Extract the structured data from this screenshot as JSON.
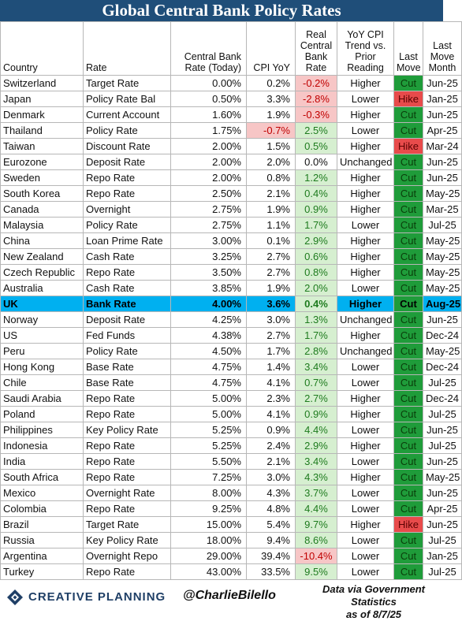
{
  "title": "Global Central Bank Policy Rates",
  "headers": {
    "country": "Country",
    "rate": "Rate",
    "cb_rate": "Central Bank Rate (Today)",
    "cpi": "CPI YoY",
    "real_rate": "Real Central Bank Rate",
    "trend": "YoY CPI Trend vs. Prior Reading",
    "last_move": "Last Move",
    "last_move_month": "Last Move Month"
  },
  "rows": [
    {
      "country": "Switzerland",
      "rate": "Target Rate",
      "cb": "0.00%",
      "cpi": "0.2%",
      "real": "-0.2%",
      "trend": "Higher",
      "move": "Cut",
      "month": "Jun-25"
    },
    {
      "country": "Japan",
      "rate": "Policy Rate Bal",
      "cb": "0.50%",
      "cpi": "3.3%",
      "real": "-2.8%",
      "trend": "Lower",
      "move": "Hike",
      "month": "Jan-25"
    },
    {
      "country": "Denmark",
      "rate": "Current Account",
      "cb": "1.60%",
      "cpi": "1.9%",
      "real": "-0.3%",
      "trend": "Higher",
      "move": "Cut",
      "month": "Jun-25"
    },
    {
      "country": "Thailand",
      "rate": "Policy Rate",
      "cb": "1.75%",
      "cpi": "-0.7%",
      "real": "2.5%",
      "trend": "Lower",
      "move": "Cut",
      "month": "Apr-25"
    },
    {
      "country": "Taiwan",
      "rate": "Discount Rate",
      "cb": "2.00%",
      "cpi": "1.5%",
      "real": "0.5%",
      "trend": "Higher",
      "move": "Hike",
      "month": "Mar-24"
    },
    {
      "country": "Eurozone",
      "rate": "Deposit Rate",
      "cb": "2.00%",
      "cpi": "2.0%",
      "real": "0.0%",
      "trend": "Unchanged",
      "move": "Cut",
      "month": "Jun-25"
    },
    {
      "country": "Sweden",
      "rate": "Repo Rate",
      "cb": "2.00%",
      "cpi": "0.8%",
      "real": "1.2%",
      "trend": "Higher",
      "move": "Cut",
      "month": "Jun-25"
    },
    {
      "country": "South Korea",
      "rate": "Repo Rate",
      "cb": "2.50%",
      "cpi": "2.1%",
      "real": "0.4%",
      "trend": "Higher",
      "move": "Cut",
      "month": "May-25"
    },
    {
      "country": "Canada",
      "rate": "Overnight",
      "cb": "2.75%",
      "cpi": "1.9%",
      "real": "0.9%",
      "trend": "Higher",
      "move": "Cut",
      "month": "Mar-25"
    },
    {
      "country": "Malaysia",
      "rate": "Policy Rate",
      "cb": "2.75%",
      "cpi": "1.1%",
      "real": "1.7%",
      "trend": "Lower",
      "move": "Cut",
      "month": "Jul-25"
    },
    {
      "country": "China",
      "rate": "Loan Prime Rate",
      "cb": "3.00%",
      "cpi": "0.1%",
      "real": "2.9%",
      "trend": "Higher",
      "move": "Cut",
      "month": "May-25"
    },
    {
      "country": "New Zealand",
      "rate": "Cash Rate",
      "cb": "3.25%",
      "cpi": "2.7%",
      "real": "0.6%",
      "trend": "Higher",
      "move": "Cut",
      "month": "May-25"
    },
    {
      "country": "Czech Republic",
      "rate": "Repo Rate",
      "cb": "3.50%",
      "cpi": "2.7%",
      "real": "0.8%",
      "trend": "Higher",
      "move": "Cut",
      "month": "May-25"
    },
    {
      "country": "Australia",
      "rate": "Cash Rate",
      "cb": "3.85%",
      "cpi": "1.9%",
      "real": "2.0%",
      "trend": "Lower",
      "move": "Cut",
      "month": "May-25"
    },
    {
      "country": "UK",
      "rate": "Bank Rate",
      "cb": "4.00%",
      "cpi": "3.6%",
      "real": "0.4%",
      "trend": "Higher",
      "move": "Cut",
      "month": "Aug-25",
      "highlight": true
    },
    {
      "country": "Norway",
      "rate": "Deposit Rate",
      "cb": "4.25%",
      "cpi": "3.0%",
      "real": "1.3%",
      "trend": "Unchanged",
      "move": "Cut",
      "month": "Jun-25"
    },
    {
      "country": "US",
      "rate": "Fed Funds",
      "cb": "4.38%",
      "cpi": "2.7%",
      "real": "1.7%",
      "trend": "Higher",
      "move": "Cut",
      "month": "Dec-24"
    },
    {
      "country": "Peru",
      "rate": "Policy Rate",
      "cb": "4.50%",
      "cpi": "1.7%",
      "real": "2.8%",
      "trend": "Unchanged",
      "move": "Cut",
      "month": "May-25"
    },
    {
      "country": "Hong Kong",
      "rate": "Base Rate",
      "cb": "4.75%",
      "cpi": "1.4%",
      "real": "3.4%",
      "trend": "Lower",
      "move": "Cut",
      "month": "Dec-24"
    },
    {
      "country": "Chile",
      "rate": "Base Rate",
      "cb": "4.75%",
      "cpi": "4.1%",
      "real": "0.7%",
      "trend": "Lower",
      "move": "Cut",
      "month": "Jul-25"
    },
    {
      "country": "Saudi Arabia",
      "rate": "Repo Rate",
      "cb": "5.00%",
      "cpi": "2.3%",
      "real": "2.7%",
      "trend": "Higher",
      "move": "Cut",
      "month": "Dec-24"
    },
    {
      "country": "Poland",
      "rate": "Repo Rate",
      "cb": "5.00%",
      "cpi": "4.1%",
      "real": "0.9%",
      "trend": "Higher",
      "move": "Cut",
      "month": "Jul-25"
    },
    {
      "country": "Philippines",
      "rate": "Key Policy Rate",
      "cb": "5.25%",
      "cpi": "0.9%",
      "real": "4.4%",
      "trend": "Lower",
      "move": "Cut",
      "month": "Jun-25"
    },
    {
      "country": "Indonesia",
      "rate": "Repo Rate",
      "cb": "5.25%",
      "cpi": "2.4%",
      "real": "2.9%",
      "trend": "Higher",
      "move": "Cut",
      "month": "Jul-25"
    },
    {
      "country": "India",
      "rate": "Repo Rate",
      "cb": "5.50%",
      "cpi": "2.1%",
      "real": "3.4%",
      "trend": "Lower",
      "move": "Cut",
      "month": "Jun-25"
    },
    {
      "country": "South Africa",
      "rate": "Repo Rate",
      "cb": "7.25%",
      "cpi": "3.0%",
      "real": "4.3%",
      "trend": "Higher",
      "move": "Cut",
      "month": "May-25"
    },
    {
      "country": "Mexico",
      "rate": "Overnight Rate",
      "cb": "8.00%",
      "cpi": "4.3%",
      "real": "3.7%",
      "trend": "Lower",
      "move": "Cut",
      "month": "Jun-25"
    },
    {
      "country": "Colombia",
      "rate": "Repo Rate",
      "cb": "9.25%",
      "cpi": "4.8%",
      "real": "4.4%",
      "trend": "Lower",
      "move": "Cut",
      "month": "Apr-25"
    },
    {
      "country": "Brazil",
      "rate": "Target Rate",
      "cb": "15.00%",
      "cpi": "5.4%",
      "real": "9.7%",
      "trend": "Higher",
      "move": "Hike",
      "month": "Jun-25"
    },
    {
      "country": "Russia",
      "rate": "Key Policy Rate",
      "cb": "18.00%",
      "cpi": "9.4%",
      "real": "8.6%",
      "trend": "Lower",
      "move": "Cut",
      "month": "Jul-25"
    },
    {
      "country": "Argentina",
      "rate": "Overnight Repo",
      "cb": "29.00%",
      "cpi": "39.4%",
      "real": "-10.4%",
      "trend": "Lower",
      "move": "Cut",
      "month": "Jan-25"
    },
    {
      "country": "Turkey",
      "rate": "Repo Rate",
      "cb": "43.00%",
      "cpi": "33.5%",
      "real": "9.5%",
      "trend": "Lower",
      "move": "Cut",
      "month": "Jul-25"
    }
  ],
  "footer": {
    "brand": "CREATIVE PLANNING",
    "handle": "@CharlieBilello",
    "source_line1": "Data via Government Statistics",
    "source_line2": "as of 8/7/25"
  },
  "colors": {
    "title_bg": "#1f4e79",
    "cut": "#1f9c3a",
    "hike": "#e84b4b",
    "positive_bg": "#d6efd0",
    "negative_bg": "#f7c6c6",
    "highlight_row": "#00b0f0"
  },
  "icons": {
    "logo": "creative-planning-logo"
  }
}
